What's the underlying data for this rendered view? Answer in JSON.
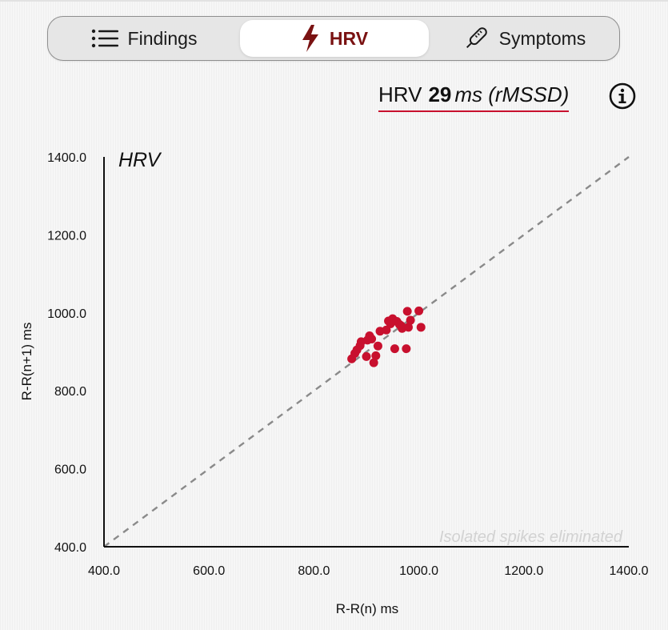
{
  "tabs": [
    {
      "label": "Findings",
      "icon": "list-icon",
      "selected": false
    },
    {
      "label": "HRV",
      "icon": "lightning-bolt-icon",
      "selected": true
    },
    {
      "label": "Symptoms",
      "icon": "thermometer-icon",
      "selected": false
    }
  ],
  "summary": {
    "prefix": "HRV",
    "value": "29",
    "unit": "ms (rMSSD)",
    "info_icon": "info-icon"
  },
  "colors": {
    "accent": "#c8102e",
    "selected_tab": "#7a1212",
    "point": "#c8102e",
    "identity_line": "#8a8a8a"
  },
  "chart_data": {
    "type": "scatter",
    "title": "HRV",
    "xlabel": "R-R(n) ms",
    "ylabel": "R-R(n+1) ms",
    "xlim": [
      400,
      1400
    ],
    "ylim": [
      400,
      1400
    ],
    "x_ticks": [
      "400.0",
      "600.0",
      "800.0",
      "1000.0",
      "1200.0",
      "1400.0"
    ],
    "y_ticks": [
      "400.0",
      "600.0",
      "800.0",
      "1000.0",
      "1200.0",
      "1400.0"
    ],
    "reference_line": "identity (y = x), dashed",
    "annotation": "Isolated spikes eliminated",
    "grid": false,
    "series": [
      {
        "points": [
          [
            872,
            882
          ],
          [
            878,
            896
          ],
          [
            882,
            905
          ],
          [
            888,
            916
          ],
          [
            890,
            926
          ],
          [
            900,
            888
          ],
          [
            902,
            930
          ],
          [
            906,
            941
          ],
          [
            910,
            933
          ],
          [
            914,
            872
          ],
          [
            918,
            890
          ],
          [
            922,
            915
          ],
          [
            926,
            953
          ],
          [
            938,
            956
          ],
          [
            942,
            979
          ],
          [
            950,
            985
          ],
          [
            954,
            908
          ],
          [
            958,
            978
          ],
          [
            963,
            970
          ],
          [
            968,
            960
          ],
          [
            976,
            908
          ],
          [
            978,
            1004
          ],
          [
            980,
            963
          ],
          [
            984,
            981
          ],
          [
            1000,
            1005
          ],
          [
            1004,
            963
          ],
          [
            966,
            967
          ],
          [
            946,
            972
          ]
        ]
      }
    ]
  }
}
